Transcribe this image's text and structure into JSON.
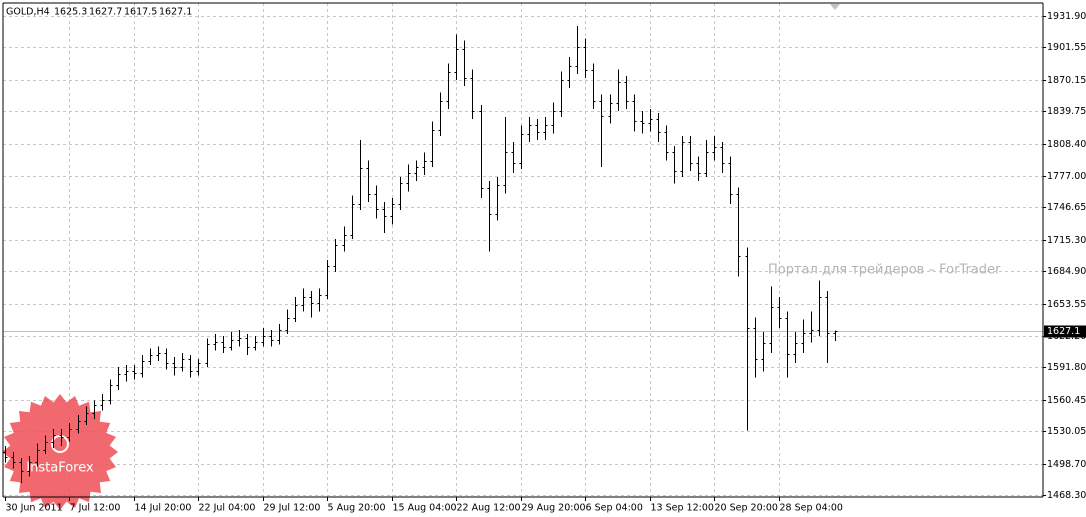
{
  "chart_data": {
    "type": "ohlc",
    "symbol": "GOLD,H4",
    "color": "#000000",
    "grid": true,
    "watermark": "Портал для трейдеров – ForTrader",
    "logo_text": "InstaForex",
    "ylim": [
      1466.4,
      1944.5
    ],
    "yticks": [
      {
        "value": 1931.9,
        "label": "1931.90"
      },
      {
        "value": 1901.55,
        "label": "1901.55"
      },
      {
        "value": 1870.15,
        "label": "1870.15"
      },
      {
        "value": 1839.75,
        "label": "1839.75"
      },
      {
        "value": 1808.4,
        "label": "1808.40"
      },
      {
        "value": 1777,
        "label": "1777.00"
      },
      {
        "value": 1746.65,
        "label": "1746.65"
      },
      {
        "value": 1715.3,
        "label": "1715.30"
      },
      {
        "value": 1684.9,
        "label": "1684.90"
      },
      {
        "value": 1653.55,
        "label": "1653.55"
      },
      {
        "value": 1622.2,
        "label": "1622.20"
      },
      {
        "value": 1591.8,
        "label": "1591.80"
      },
      {
        "value": 1560.45,
        "label": "1560.45"
      },
      {
        "value": 1530.05,
        "label": "1530.05"
      },
      {
        "value": 1498.7,
        "label": "1498.70"
      },
      {
        "value": 1468.3,
        "label": "1468.30"
      }
    ],
    "categories": [
      "30 Jun 2011",
      null,
      null,
      null,
      null,
      null,
      null,
      null,
      "7 Jul 12:00",
      null,
      null,
      null,
      null,
      null,
      null,
      null,
      "14 Jul 20:00",
      null,
      null,
      null,
      null,
      null,
      null,
      null,
      "22 Jul 04:00",
      null,
      null,
      null,
      null,
      null,
      null,
      null,
      "29 Jul 12:00",
      null,
      null,
      null,
      null,
      null,
      null,
      null,
      "5 Aug 20:00",
      null,
      null,
      null,
      null,
      null,
      null,
      null,
      "15 Aug 04:00",
      null,
      null,
      null,
      null,
      null,
      null,
      null,
      "22 Aug 12:00",
      null,
      null,
      null,
      null,
      null,
      null,
      null,
      "29 Aug 20:00",
      null,
      null,
      null,
      null,
      null,
      null,
      null,
      "6 Sep 04:00",
      null,
      null,
      null,
      null,
      null,
      null,
      null,
      "13 Sep 12:00",
      null,
      null,
      null,
      null,
      null,
      null,
      null,
      "20 Sep 20:00",
      null,
      null,
      null,
      null,
      null,
      null,
      null,
      "28 Sep 04:00",
      null,
      null,
      null,
      null,
      null,
      null,
      null
    ],
    "open": [
      1510,
      1505,
      1500,
      1492,
      1500,
      1512,
      1520,
      1526,
      1524,
      1532,
      1540,
      1548,
      1555,
      1560,
      1575,
      1585,
      1588,
      1586,
      1598,
      1604,
      1606,
      1596,
      1592,
      1600,
      1588,
      1596,
      1614,
      1616,
      1612,
      1618,
      1620,
      1612,
      1616,
      1622,
      1618,
      1628,
      1640,
      1652,
      1660,
      1654,
      1662,
      1690,
      1710,
      1720,
      1750,
      1785,
      1760,
      1745,
      1738,
      1750,
      1770,
      1780,
      1786,
      1792,
      1822,
      1850,
      1878,
      1900,
      1872,
      1840,
      1765,
      1740,
      1768,
      1800,
      1790,
      1818,
      1826,
      1820,
      1826,
      1840,
      1870,
      1884,
      1902,
      1880,
      1850,
      1835,
      1848,
      1868,
      1850,
      1830,
      1828,
      1832,
      1820,
      1800,
      1782,
      1810,
      1790,
      1780,
      1800,
      1805,
      1790,
      1760,
      1700,
      1630,
      1600,
      1615,
      1650,
      1640,
      1605,
      1615,
      1625,
      1628,
      1660,
      1625.3
    ],
    "high": [
      1516,
      1510,
      1504,
      1506,
      1518,
      1526,
      1532,
      1532,
      1538,
      1546,
      1554,
      1560,
      1566,
      1580,
      1592,
      1594,
      1594,
      1604,
      1610,
      1612,
      1610,
      1602,
      1606,
      1604,
      1600,
      1620,
      1624,
      1622,
      1626,
      1628,
      1624,
      1622,
      1630,
      1628,
      1634,
      1648,
      1660,
      1668,
      1666,
      1668,
      1696,
      1716,
      1728,
      1758,
      1812,
      1792,
      1768,
      1752,
      1756,
      1776,
      1788,
      1792,
      1800,
      1830,
      1858,
      1886,
      1914,
      1908,
      1880,
      1846,
      1772,
      1776,
      1834,
      1810,
      1826,
      1834,
      1832,
      1834,
      1848,
      1878,
      1892,
      1922,
      1910,
      1886,
      1856,
      1856,
      1880,
      1874,
      1856,
      1840,
      1842,
      1838,
      1826,
      1806,
      1816,
      1816,
      1796,
      1812,
      1816,
      1810,
      1796,
      1766,
      1708,
      1640,
      1626,
      1670,
      1660,
      1646,
      1626,
      1638,
      1646,
      1676,
      1666,
      1627.7
    ],
    "low": [
      1500,
      1494,
      1480,
      1486,
      1496,
      1508,
      1514,
      1516,
      1520,
      1528,
      1536,
      1542,
      1550,
      1556,
      1570,
      1578,
      1580,
      1582,
      1594,
      1598,
      1590,
      1584,
      1588,
      1582,
      1584,
      1592,
      1608,
      1606,
      1608,
      1612,
      1604,
      1608,
      1612,
      1612,
      1614,
      1624,
      1636,
      1646,
      1640,
      1646,
      1658,
      1684,
      1704,
      1716,
      1744,
      1752,
      1736,
      1722,
      1730,
      1744,
      1762,
      1772,
      1778,
      1786,
      1816,
      1842,
      1870,
      1864,
      1832,
      1756,
      1704,
      1734,
      1760,
      1780,
      1784,
      1810,
      1812,
      1812,
      1818,
      1834,
      1862,
      1876,
      1872,
      1842,
      1786,
      1828,
      1840,
      1842,
      1820,
      1818,
      1820,
      1810,
      1792,
      1770,
      1776,
      1782,
      1772,
      1776,
      1792,
      1780,
      1750,
      1680,
      1531,
      1582,
      1588,
      1606,
      1630,
      1582,
      1596,
      1606,
      1616,
      1622,
      1596,
      1617.5
    ],
    "close": [
      1505,
      1500,
      1492,
      1500,
      1512,
      1520,
      1526,
      1524,
      1532,
      1540,
      1548,
      1555,
      1560,
      1575,
      1585,
      1588,
      1586,
      1598,
      1604,
      1606,
      1596,
      1592,
      1600,
      1588,
      1596,
      1614,
      1616,
      1612,
      1618,
      1620,
      1612,
      1616,
      1622,
      1618,
      1628,
      1640,
      1652,
      1660,
      1654,
      1662,
      1690,
      1710,
      1720,
      1750,
      1785,
      1760,
      1745,
      1738,
      1750,
      1770,
      1780,
      1786,
      1792,
      1822,
      1850,
      1878,
      1900,
      1872,
      1840,
      1765,
      1740,
      1768,
      1800,
      1790,
      1818,
      1826,
      1820,
      1826,
      1840,
      1870,
      1884,
      1902,
      1880,
      1850,
      1835,
      1848,
      1868,
      1850,
      1830,
      1828,
      1832,
      1820,
      1800,
      1782,
      1810,
      1790,
      1780,
      1800,
      1805,
      1790,
      1760,
      1700,
      1630,
      1600,
      1615,
      1650,
      1640,
      1605,
      1615,
      1625,
      1628,
      1660,
      1625.3,
      1627.1
    ]
  }
}
